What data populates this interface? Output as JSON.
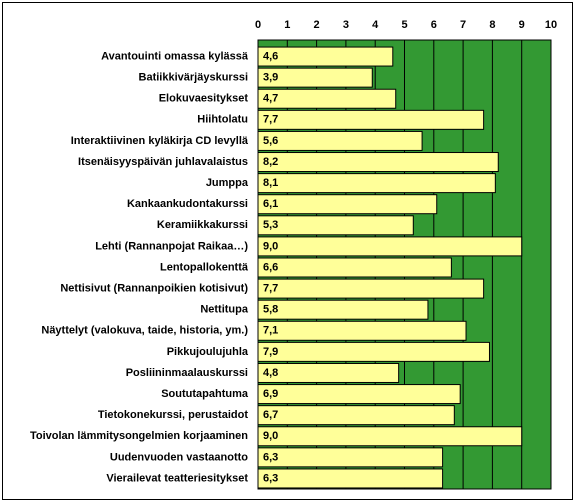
{
  "chart_data": {
    "type": "barh",
    "categories": [
      "Avantouinti omassa kylässä",
      "Batiikkivärjäyskurssi",
      "Elokuvaesitykset",
      "Hiihtolatu",
      "Interaktiivinen kyläkirja CD levyllä",
      "Itsenäisyyspäivän juhlavalaistus",
      "Jumppa",
      "Kankaankudontakurssi",
      "Keramiikkakurssi",
      "Lehti (Rannanpojat Raikaa…)",
      "Lentopallokenttä",
      "Nettisivut (Rannanpoikien kotisivut)",
      "Nettitupa",
      "Näyttelyt (valokuva, taide, historia, ym.)",
      "Pikkujoulujuhla",
      "Posliininmaalauskurssi",
      "Soututapahtuma",
      "Tietokonekurssi, perustaidot",
      "Toivolan lämmitysongelmien korjaaminen",
      "Uudenvuoden vastaanotto",
      "Vierailevat teatteriesitykset"
    ],
    "values": [
      4.6,
      3.9,
      4.7,
      7.7,
      5.6,
      8.2,
      8.1,
      6.1,
      5.3,
      9.0,
      6.6,
      7.7,
      5.8,
      7.1,
      7.9,
      4.8,
      6.9,
      6.7,
      9.0,
      6.3,
      6.3
    ],
    "value_labels": [
      "4,6",
      "3,9",
      "4,7",
      "7,7",
      "5,6",
      "8,2",
      "8,1",
      "6,1",
      "5,3",
      "9,0",
      "6,6",
      "7,7",
      "5,8",
      "7,1",
      "7,9",
      "4,8",
      "6,9",
      "6,7",
      "9,0",
      "6,3",
      "6,3"
    ],
    "color": "#ffff99",
    "background": "#339933",
    "xlim": [
      0,
      10
    ],
    "xticks": [
      0,
      1,
      2,
      3,
      4,
      5,
      6,
      7,
      8,
      9,
      10
    ],
    "grid": true
  }
}
